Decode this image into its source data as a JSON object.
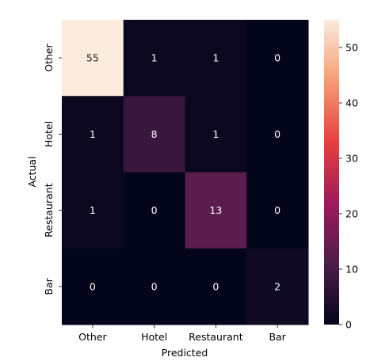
{
  "chart_data": {
    "type": "heatmap",
    "x_categories": [
      "Other",
      "Hotel",
      "Restaurant",
      "Bar"
    ],
    "y_categories": [
      "Other",
      "Hotel",
      "Restaurant",
      "Bar"
    ],
    "values": [
      [
        55,
        1,
        1,
        0
      ],
      [
        1,
        8,
        1,
        0
      ],
      [
        1,
        0,
        13,
        0
      ],
      [
        0,
        0,
        0,
        2
      ]
    ],
    "xlabel": "Predicted",
    "ylabel": "Actual",
    "colorbar": {
      "min": 0,
      "max": 55,
      "ticks": [
        0,
        10,
        20,
        30,
        40,
        50
      ]
    },
    "colormap": [
      "#03051a",
      "#4c1d4b",
      "#a11a5b",
      "#e83f3f",
      "#f69c73",
      "#faebdd"
    ],
    "annotation_colors": {
      "on_dark": "#ffffff",
      "on_light": "#262626"
    }
  }
}
